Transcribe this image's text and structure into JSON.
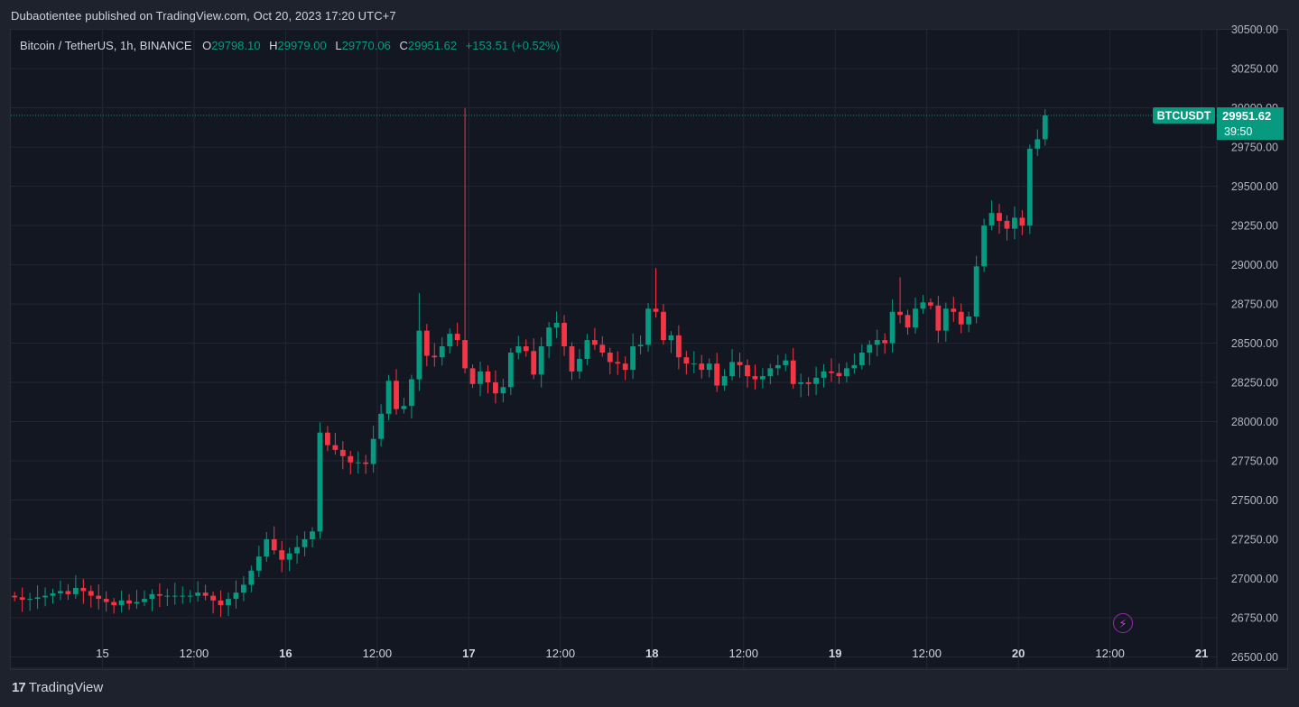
{
  "header": {
    "publisher_line": "Dubaotientee published on TradingView.com, Oct 20, 2023 17:20 UTC+7"
  },
  "legend": {
    "symbol": "Bitcoin / TetherUS, 1h, BINANCE",
    "open_label": "O",
    "open": "29798.10",
    "high_label": "H",
    "high": "29979.00",
    "low_label": "L",
    "low": "29770.06",
    "close_label": "C",
    "close": "29951.62",
    "change": "+153.51 (+0.52%)"
  },
  "price_tag": {
    "ticker": "BTCUSDT",
    "price": "29951.62",
    "countdown": "39:50"
  },
  "footer": {
    "brand_mark": "17",
    "brand_name": "TradingView"
  },
  "icons": {
    "alert": "lightning-icon"
  },
  "colors": {
    "up": "#089981",
    "down": "#f23645",
    "background": "#131722",
    "grid": "#232733",
    "tag": "#089981"
  },
  "chart_data": {
    "type": "candlestick",
    "title": "Bitcoin / TetherUS, 1h, BINANCE",
    "x_tick_labels": [
      "15",
      "12:00",
      "16",
      "12:00",
      "17",
      "12:00",
      "18",
      "12:00",
      "19",
      "12:00",
      "20",
      "12:00",
      "21"
    ],
    "x_tick_hours": [
      24,
      36,
      48,
      60,
      72,
      84,
      96,
      108,
      120,
      132,
      144,
      156,
      168
    ],
    "bold_x_ticks": [
      "16",
      "17",
      "18",
      "19",
      "20",
      "21"
    ],
    "y_tick_labels": [
      "26500.00",
      "26750.00",
      "27000.00",
      "27250.00",
      "27500.00",
      "27750.00",
      "28000.00",
      "28250.00",
      "28500.00",
      "28750.00",
      "29000.00",
      "29250.00",
      "29500.00",
      "29750.00",
      "30000.00",
      "30250.00",
      "30500.00"
    ],
    "y_range": [
      26428,
      30498
    ],
    "x_range_hours": [
      12,
      170
    ],
    "last_price": 29951.62,
    "candle_start_hour": 12,
    "closes": [
      26880,
      26865,
      26870,
      26880,
      26890,
      26905,
      26920,
      26900,
      26940,
      26920,
      26890,
      26870,
      26850,
      26830,
      26860,
      26840,
      26850,
      26870,
      26900,
      26890,
      26890,
      26890,
      26890,
      26890,
      26910,
      26890,
      26860,
      26830,
      26870,
      26910,
      26960,
      27050,
      27140,
      27250,
      27180,
      27120,
      27160,
      27200,
      27250,
      27300,
      27930,
      27850,
      27820,
      27780,
      27740,
      27740,
      27730,
      27890,
      28050,
      28260,
      28080,
      28100,
      28270,
      28580,
      28420,
      28410,
      28480,
      28560,
      28520,
      28340,
      28240,
      28320,
      28250,
      28180,
      28220,
      28440,
      28480,
      28450,
      28300,
      28480,
      28600,
      28630,
      28480,
      28320,
      28400,
      28520,
      28490,
      28440,
      28380,
      28370,
      28330,
      28480,
      28490,
      28720,
      28700,
      28520,
      28550,
      28410,
      28370,
      28370,
      28330,
      28370,
      28230,
      28290,
      28380,
      28360,
      28290,
      28270,
      28290,
      28340,
      28360,
      28390,
      28240,
      28250,
      28240,
      28280,
      28320,
      28310,
      28290,
      28340,
      28360,
      28440,
      28490,
      28520,
      28500,
      28700,
      28680,
      28600,
      28720,
      28760,
      28740,
      28580,
      28720,
      28700,
      28620,
      28670,
      28990,
      29250,
      29330,
      29280,
      29230,
      29300,
      29250,
      29740,
      29800,
      29951.62
    ],
    "price_axis_markers": [
      {
        "ticker": "BTCUSDT",
        "price": 29951.62,
        "countdown": "39:50"
      }
    ]
  }
}
